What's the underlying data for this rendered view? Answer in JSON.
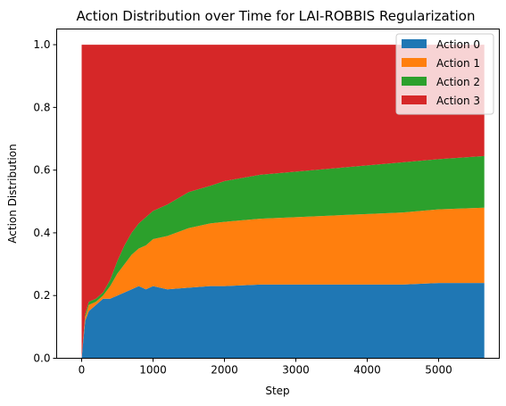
{
  "chart_data": {
    "type": "area",
    "stacked": true,
    "title": "Action Distribution over Time for LAI-ROBBIS Regularization",
    "xlabel": "Step",
    "ylabel": "Action Distribution",
    "xlim": [
      -350,
      5850
    ],
    "ylim": [
      0,
      1.05
    ],
    "x_ticks": [
      0,
      1000,
      2000,
      3000,
      4000,
      5000
    ],
    "y_ticks": [
      0.0,
      0.2,
      0.4,
      0.6,
      0.8,
      1.0
    ],
    "x_tick_labels": [
      "0",
      "1000",
      "2000",
      "3000",
      "4000",
      "5000"
    ],
    "y_tick_labels": [
      "0.0",
      "0.2",
      "0.4",
      "0.6",
      "0.8",
      "1.0"
    ],
    "legend_position": "top-right",
    "x": [
      0,
      50,
      100,
      200,
      300,
      400,
      500,
      600,
      700,
      800,
      900,
      1000,
      1200,
      1500,
      1800,
      2000,
      2500,
      3000,
      3500,
      4000,
      4500,
      5000,
      5640
    ],
    "series": [
      {
        "name": "Action 0",
        "color": "#1f77b4",
        "values": [
          0.0,
          0.12,
          0.15,
          0.17,
          0.19,
          0.19,
          0.2,
          0.21,
          0.22,
          0.23,
          0.22,
          0.23,
          0.22,
          0.225,
          0.23,
          0.23,
          0.235,
          0.235,
          0.235,
          0.235,
          0.235,
          0.24,
          0.24
        ]
      },
      {
        "name": "Action 1",
        "color": "#ff7f0e",
        "values": [
          0.0,
          0.01,
          0.02,
          0.01,
          0.01,
          0.04,
          0.07,
          0.09,
          0.11,
          0.12,
          0.14,
          0.15,
          0.17,
          0.19,
          0.2,
          0.205,
          0.21,
          0.215,
          0.22,
          0.225,
          0.23,
          0.235,
          0.24
        ]
      },
      {
        "name": "Action 2",
        "color": "#2ca02c",
        "values": [
          0.0,
          0.01,
          0.01,
          0.01,
          0.01,
          0.02,
          0.04,
          0.06,
          0.07,
          0.08,
          0.09,
          0.09,
          0.1,
          0.115,
          0.12,
          0.13,
          0.14,
          0.145,
          0.15,
          0.155,
          0.16,
          0.16,
          0.165
        ]
      },
      {
        "name": "Action 3",
        "color": "#d62728",
        "values": [
          1.0,
          0.86,
          0.82,
          0.81,
          0.79,
          0.75,
          0.69,
          0.64,
          0.6,
          0.57,
          0.55,
          0.53,
          0.51,
          0.47,
          0.45,
          0.435,
          0.415,
          0.405,
          0.395,
          0.385,
          0.375,
          0.365,
          0.355
        ]
      }
    ]
  }
}
